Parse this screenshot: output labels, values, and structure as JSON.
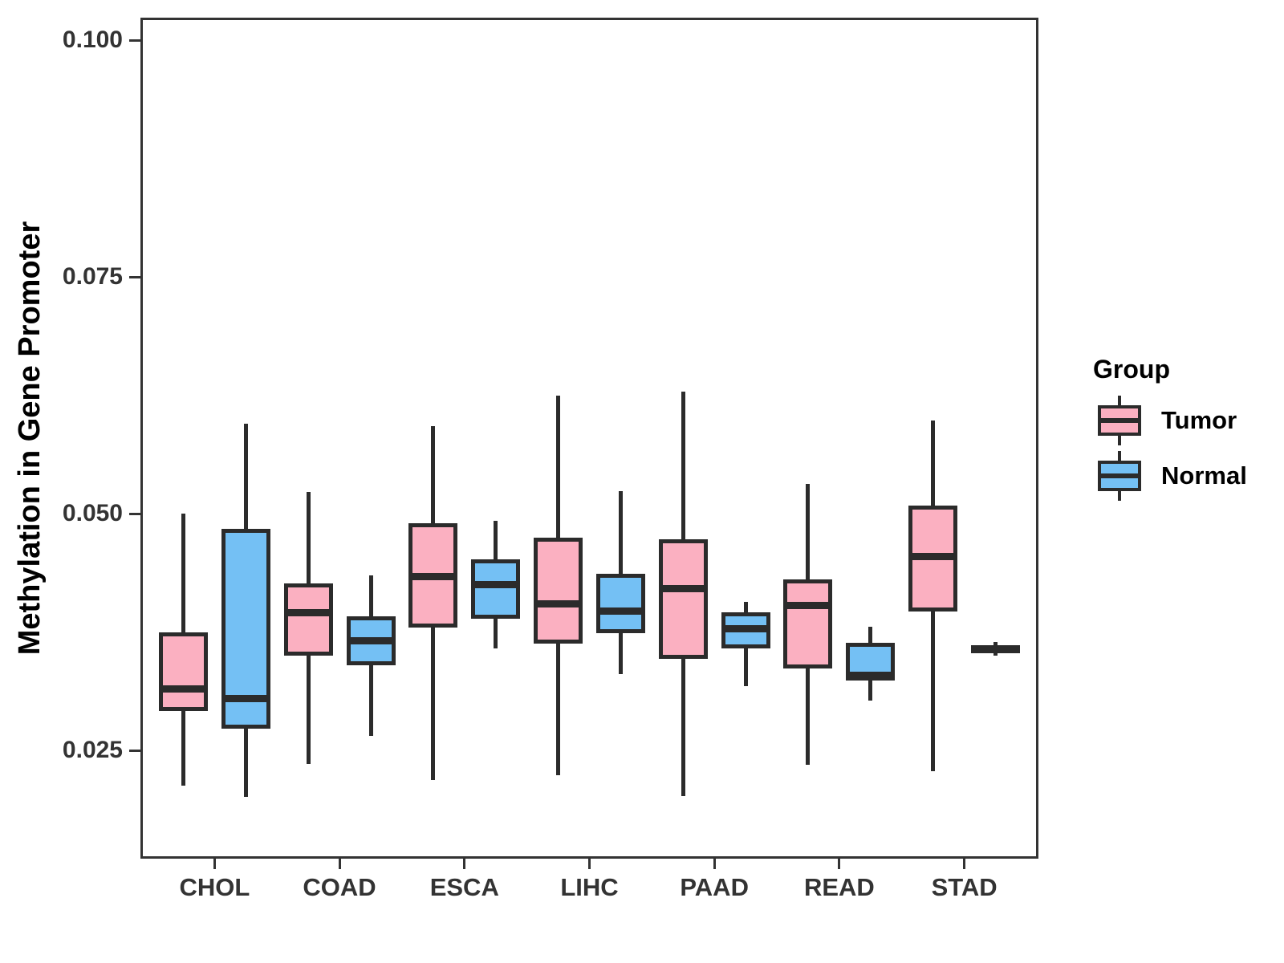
{
  "chart_data": {
    "type": "boxplot",
    "title": "",
    "xlabel": "",
    "ylabel": "Methylation in Gene Promoter",
    "grid": false,
    "ylim": [
      0.0136,
      0.1024
    ],
    "y_ticks": [
      {
        "label": "0.025",
        "value": 0.025
      },
      {
        "label": "0.050",
        "value": 0.05
      },
      {
        "label": "0.075",
        "value": 0.075
      },
      {
        "label": "0.100",
        "value": 0.1
      }
    ],
    "categories": [
      "CHOL",
      "COAD",
      "ESCA",
      "LIHC",
      "PAAD",
      "READ",
      "STAD"
    ],
    "legend": {
      "title": "Group",
      "position": "right",
      "entries": [
        {
          "label": "Tumor",
          "color": "#FBB0C1"
        },
        {
          "label": "Normal",
          "color": "#74C0F4"
        }
      ]
    },
    "stroke_color": "#2b2b2b",
    "series": [
      {
        "name": "Tumor",
        "color": "#FBB0C1",
        "boxes": [
          {
            "category": "CHOL",
            "min": 0.0213,
            "q1": 0.0292,
            "median": 0.0315,
            "q3": 0.0375,
            "max": 0.05
          },
          {
            "category": "COAD",
            "min": 0.0236,
            "q1": 0.035,
            "median": 0.0396,
            "q3": 0.0427,
            "max": 0.0523
          },
          {
            "category": "ESCA",
            "min": 0.0219,
            "q1": 0.038,
            "median": 0.0434,
            "q3": 0.049,
            "max": 0.0593
          },
          {
            "category": "LIHC",
            "min": 0.0224,
            "q1": 0.0363,
            "median": 0.0405,
            "q3": 0.0475,
            "max": 0.0625
          },
          {
            "category": "PAAD",
            "min": 0.0202,
            "q1": 0.0347,
            "median": 0.0421,
            "q3": 0.0473,
            "max": 0.0629
          },
          {
            "category": "READ",
            "min": 0.0235,
            "q1": 0.0337,
            "median": 0.0403,
            "q3": 0.0431,
            "max": 0.0532
          },
          {
            "category": "STAD",
            "min": 0.0228,
            "q1": 0.0397,
            "median": 0.0455,
            "q3": 0.0509,
            "max": 0.0599
          }
        ]
      },
      {
        "name": "Normal",
        "color": "#74C0F4",
        "boxes": [
          {
            "category": "CHOL",
            "min": 0.0201,
            "q1": 0.0273,
            "median": 0.0305,
            "q3": 0.0484,
            "max": 0.0595
          },
          {
            "category": "COAD",
            "min": 0.0266,
            "q1": 0.034,
            "median": 0.0366,
            "q3": 0.0392,
            "max": 0.0435
          },
          {
            "category": "ESCA",
            "min": 0.0358,
            "q1": 0.0389,
            "median": 0.0425,
            "q3": 0.0452,
            "max": 0.0493
          },
          {
            "category": "LIHC",
            "min": 0.0331,
            "q1": 0.0374,
            "median": 0.0397,
            "q3": 0.0437,
            "max": 0.0524
          },
          {
            "category": "PAAD",
            "min": 0.0318,
            "q1": 0.0358,
            "median": 0.0379,
            "q3": 0.0396,
            "max": 0.0407
          },
          {
            "category": "READ",
            "min": 0.0303,
            "q1": 0.0324,
            "median": 0.033,
            "q3": 0.0364,
            "max": 0.0381
          },
          {
            "category": "STAD",
            "min": 0.035,
            "q1": 0.0354,
            "median": 0.0358,
            "q3": 0.0361,
            "max": 0.0365
          }
        ]
      }
    ]
  }
}
